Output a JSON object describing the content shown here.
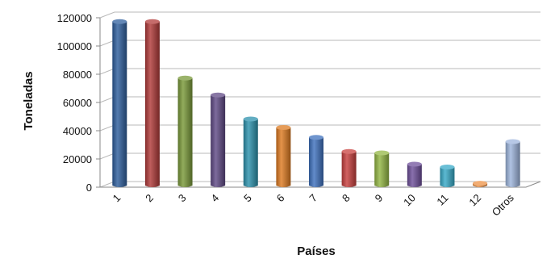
{
  "chart_data": {
    "type": "bar",
    "title": "",
    "xlabel": "Países",
    "ylabel": "Toneladas",
    "ylim": [
      0,
      120000
    ],
    "yticks": [
      0,
      20000,
      40000,
      60000,
      80000,
      100000,
      120000
    ],
    "grid": true,
    "legend": "none",
    "categories": [
      "1",
      "2",
      "3",
      "4",
      "5",
      "6",
      "7",
      "8",
      "9",
      "10",
      "11",
      "12",
      "Otros"
    ],
    "values": [
      115000,
      115000,
      75000,
      63000,
      46000,
      40000,
      33000,
      23000,
      22000,
      14000,
      12000,
      500,
      30000
    ],
    "colors": [
      "#2f5f9e",
      "#b13b39",
      "#7a9a3a",
      "#604a86",
      "#2d92ad",
      "#de7b22",
      "#3f72be",
      "#c8403e",
      "#94b744",
      "#6f509b",
      "#38aac8",
      "#ee9144",
      "#9fb6dd"
    ]
  }
}
